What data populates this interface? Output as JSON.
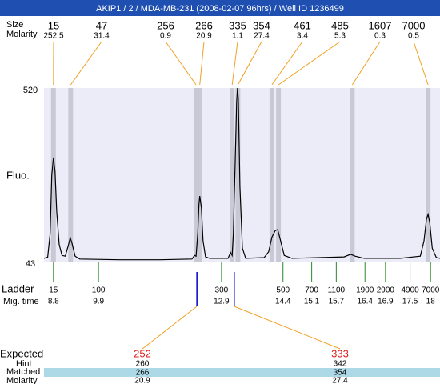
{
  "header": {
    "title": "AKIP1 / 2 / MDA-MB-231 (2008-02-07 96hrs) / Well ID 1236499"
  },
  "labels": {
    "size": "Size",
    "molarity": "Molarity",
    "ladder": "Ladder",
    "mig_time": "Mig. time",
    "expected": "Expected",
    "hint": "Hint",
    "matched": "Matched",
    "molarity_bottom": "Molarity"
  },
  "chart_data": {
    "type": "line",
    "y_label": "Fluo.",
    "ylim": [
      43,
      520
    ],
    "yticks": [
      43,
      520
    ],
    "xlim": [
      8.57,
      18.23
    ],
    "color": "#000000",
    "x": [
      8.57,
      8.66,
      8.72,
      8.76,
      8.8,
      8.84,
      8.88,
      8.94,
      9.01,
      9.09,
      9.17,
      9.21,
      9.25,
      9.33,
      9.44,
      10.42,
      11.4,
      12.18,
      12.24,
      12.28,
      12.32,
      12.35,
      12.37,
      12.41,
      12.45,
      12.51,
      12.61,
      13.06,
      13.12,
      13.16,
      13.19,
      13.23,
      13.27,
      13.29,
      13.31,
      13.35,
      13.41,
      13.49,
      13.94,
      14.05,
      14.13,
      14.21,
      14.27,
      14.33,
      14.43,
      14.62,
      15.3,
      15.89,
      16.05,
      16.16,
      16.38,
      17.26,
      17.75,
      17.84,
      17.9,
      17.94,
      17.98,
      18.04,
      18.14,
      18.23
    ],
    "values": [
      52,
      55,
      120,
      280,
      329,
      290,
      180,
      90,
      60,
      58,
      90,
      109,
      95,
      58,
      50,
      48,
      48,
      50,
      60,
      58,
      120,
      200,
      223,
      190,
      100,
      56,
      52,
      52,
      68,
      60,
      120,
      300,
      480,
      520,
      490,
      250,
      80,
      52,
      54,
      70,
      110,
      128,
      131,
      105,
      60,
      52,
      54,
      56,
      63,
      58,
      52,
      52,
      58,
      100,
      160,
      173,
      150,
      80,
      54,
      52
    ],
    "peaks": [
      {
        "size": 15,
        "molarity": 252.5,
        "time": 8.8
      },
      {
        "size": 47,
        "molarity": 31.4,
        "time": 9.22
      },
      {
        "size": 256,
        "molarity": 0.9,
        "time": 12.28
      },
      {
        "size": 266,
        "molarity": 20.9,
        "time": 12.37
      },
      {
        "size": 335,
        "molarity": 1.1,
        "time": 13.16
      },
      {
        "size": 354,
        "molarity": 27.4,
        "time": 13.3
      },
      {
        "size": 461,
        "molarity": 3.4,
        "time": 14.13
      },
      {
        "size": 485,
        "molarity": 5.3,
        "time": 14.29
      },
      {
        "size": 1607,
        "molarity": 0.3,
        "time": 16.09
      },
      {
        "size": 7000,
        "molarity": 0.5,
        "time": 17.94
      }
    ],
    "ladder": [
      {
        "size": 15,
        "time": 8.8
      },
      {
        "size": 100,
        "time": 9.9
      },
      {
        "size": 300,
        "time": 12.9
      },
      {
        "size": 500,
        "time": 14.4
      },
      {
        "size": 700,
        "time": 15.1
      },
      {
        "size": 1100,
        "time": 15.7
      },
      {
        "size": 1900,
        "time": 16.4
      },
      {
        "size": 2900,
        "time": 16.9
      },
      {
        "size": 4900,
        "time": 17.5
      },
      {
        "size": 7000,
        "time": 18
      }
    ],
    "expected": [
      {
        "expected": 252,
        "hint": 260,
        "matched": 266,
        "molarity": 20.9,
        "time": 12.3
      },
      {
        "expected": 333,
        "hint": 342,
        "matched": 354,
        "molarity": 27.4,
        "time": 13.21
      }
    ]
  }
}
